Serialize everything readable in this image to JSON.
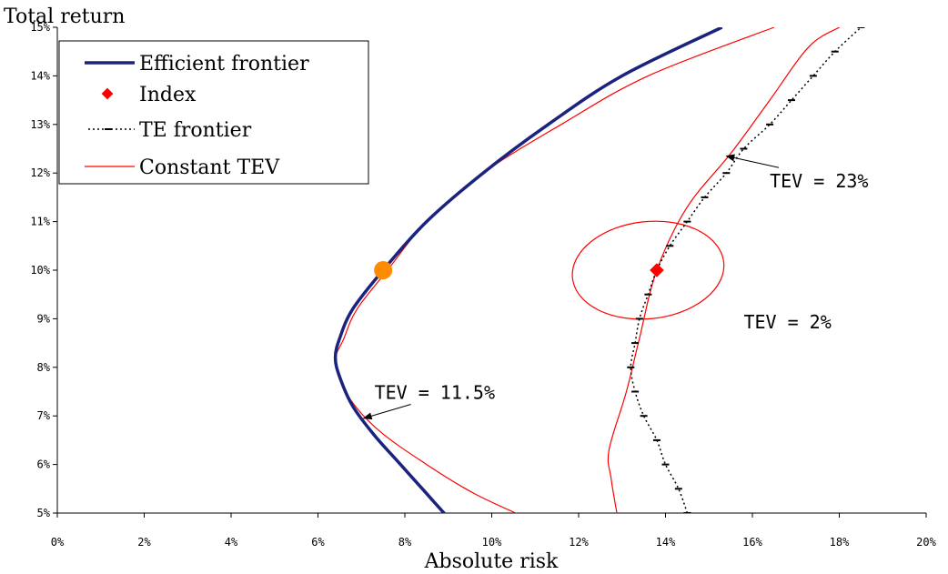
{
  "chart_data": {
    "type": "line",
    "ylabel": "Total return",
    "xlabel": "Absolute risk",
    "xlim": [
      0,
      20
    ],
    "ylim": [
      5,
      15
    ],
    "x_ticks": [
      0,
      2,
      4,
      6,
      8,
      10,
      12,
      14,
      16,
      18,
      20
    ],
    "y_ticks": [
      5,
      6,
      7,
      8,
      9,
      10,
      11,
      12,
      13,
      14,
      15
    ],
    "x_tick_labels": [
      "0%",
      "2%",
      "4%",
      "6%",
      "8%",
      "10%",
      "12%",
      "14%",
      "16%",
      "18%",
      "20%"
    ],
    "y_tick_labels": [
      "5%",
      "6%",
      "7%",
      "8%",
      "9%",
      "10%",
      "11%",
      "12%",
      "13%",
      "14%",
      "15%"
    ],
    "grid": false,
    "legend": {
      "placement": "top-left",
      "entries": [
        "Efficient frontier",
        "Index",
        "TE frontier",
        "Constant TEV"
      ]
    },
    "series": [
      {
        "name": "Efficient frontier",
        "color": "#1a237e",
        "points": [
          [
            9.0,
            4.9
          ],
          [
            8.5,
            5.4
          ],
          [
            7.9,
            6.0
          ],
          [
            7.3,
            6.6
          ],
          [
            6.8,
            7.2
          ],
          [
            6.5,
            7.8
          ],
          [
            6.4,
            8.2
          ],
          [
            6.5,
            8.6
          ],
          [
            6.8,
            9.2
          ],
          [
            7.5,
            10.0
          ],
          [
            8.5,
            11.0
          ],
          [
            9.8,
            12.0
          ],
          [
            11.3,
            13.0
          ],
          [
            13.0,
            14.0
          ],
          [
            15.3,
            15.0
          ]
        ]
      },
      {
        "name": "Index",
        "color": "#ff0000",
        "points": [
          [
            13.8,
            10.0
          ]
        ]
      },
      {
        "name": "TE frontier",
        "color": "#000000",
        "points": [
          [
            14.5,
            5.0
          ],
          [
            14.3,
            5.5
          ],
          [
            14.0,
            6.0
          ],
          [
            13.8,
            6.5
          ],
          [
            13.5,
            7.0
          ],
          [
            13.3,
            7.5
          ],
          [
            13.2,
            8.0
          ],
          [
            13.3,
            8.5
          ],
          [
            13.4,
            9.0
          ],
          [
            13.6,
            9.5
          ],
          [
            13.8,
            10.0
          ],
          [
            14.1,
            10.5
          ],
          [
            14.5,
            11.0
          ],
          [
            14.9,
            11.5
          ],
          [
            15.4,
            12.0
          ],
          [
            15.8,
            12.5
          ],
          [
            16.4,
            13.0
          ],
          [
            16.9,
            13.5
          ],
          [
            17.4,
            14.0
          ],
          [
            17.9,
            14.5
          ],
          [
            18.5,
            15.0
          ]
        ]
      }
    ],
    "constant_tev_curves": [
      {
        "label": "TEV = 11.5%",
        "points": [
          [
            10.8,
            4.9
          ],
          [
            9.6,
            5.4
          ],
          [
            8.5,
            6.0
          ],
          [
            7.4,
            6.7
          ],
          [
            6.7,
            7.4
          ],
          [
            6.4,
            8.1
          ],
          [
            6.6,
            8.6
          ],
          [
            6.9,
            9.2
          ],
          [
            7.6,
            10.0
          ],
          [
            8.5,
            11.0
          ],
          [
            9.8,
            12.0
          ],
          [
            11.6,
            13.0
          ],
          [
            13.6,
            14.0
          ],
          [
            16.5,
            15.0
          ]
        ]
      },
      {
        "label": "TEV = 23%",
        "points": [
          [
            12.9,
            4.9
          ],
          [
            12.75,
            5.7
          ],
          [
            12.7,
            6.3
          ],
          [
            13.1,
            7.5
          ],
          [
            13.4,
            8.6
          ],
          [
            13.8,
            10.0
          ],
          [
            14.5,
            11.3
          ],
          [
            15.5,
            12.4
          ],
          [
            16.4,
            13.5
          ],
          [
            17.3,
            14.6
          ],
          [
            18.0,
            15.0
          ]
        ]
      },
      {
        "label": "TEV = 2%",
        "type": "ellipse",
        "center": [
          13.6,
          10.0
        ],
        "x_radius": 1.75,
        "y_radius": 1.0,
        "tilt_degrees": -6
      }
    ],
    "annotations": [
      {
        "text": "TEV = 23%",
        "x": 16.4,
        "y": 11.7,
        "arrow_to": [
          15.4,
          12.35
        ]
      },
      {
        "text": "TEV = 2%",
        "x": 15.8,
        "y": 8.8
      },
      {
        "text": "TEV = 11.5%",
        "x": 7.3,
        "y": 7.35,
        "arrow_to": [
          7.05,
          6.95
        ]
      }
    ],
    "highlight_point": {
      "x": 7.5,
      "y": 10.0,
      "color": "#ff8c00"
    }
  }
}
